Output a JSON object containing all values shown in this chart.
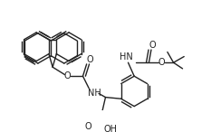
{
  "bg_color": "#ffffff",
  "line_color": "#222222",
  "line_width": 1.0,
  "figsize": [
    2.33,
    1.46
  ],
  "dpi": 100,
  "xlim": [
    0,
    233
  ],
  "ylim": [
    0,
    146
  ]
}
